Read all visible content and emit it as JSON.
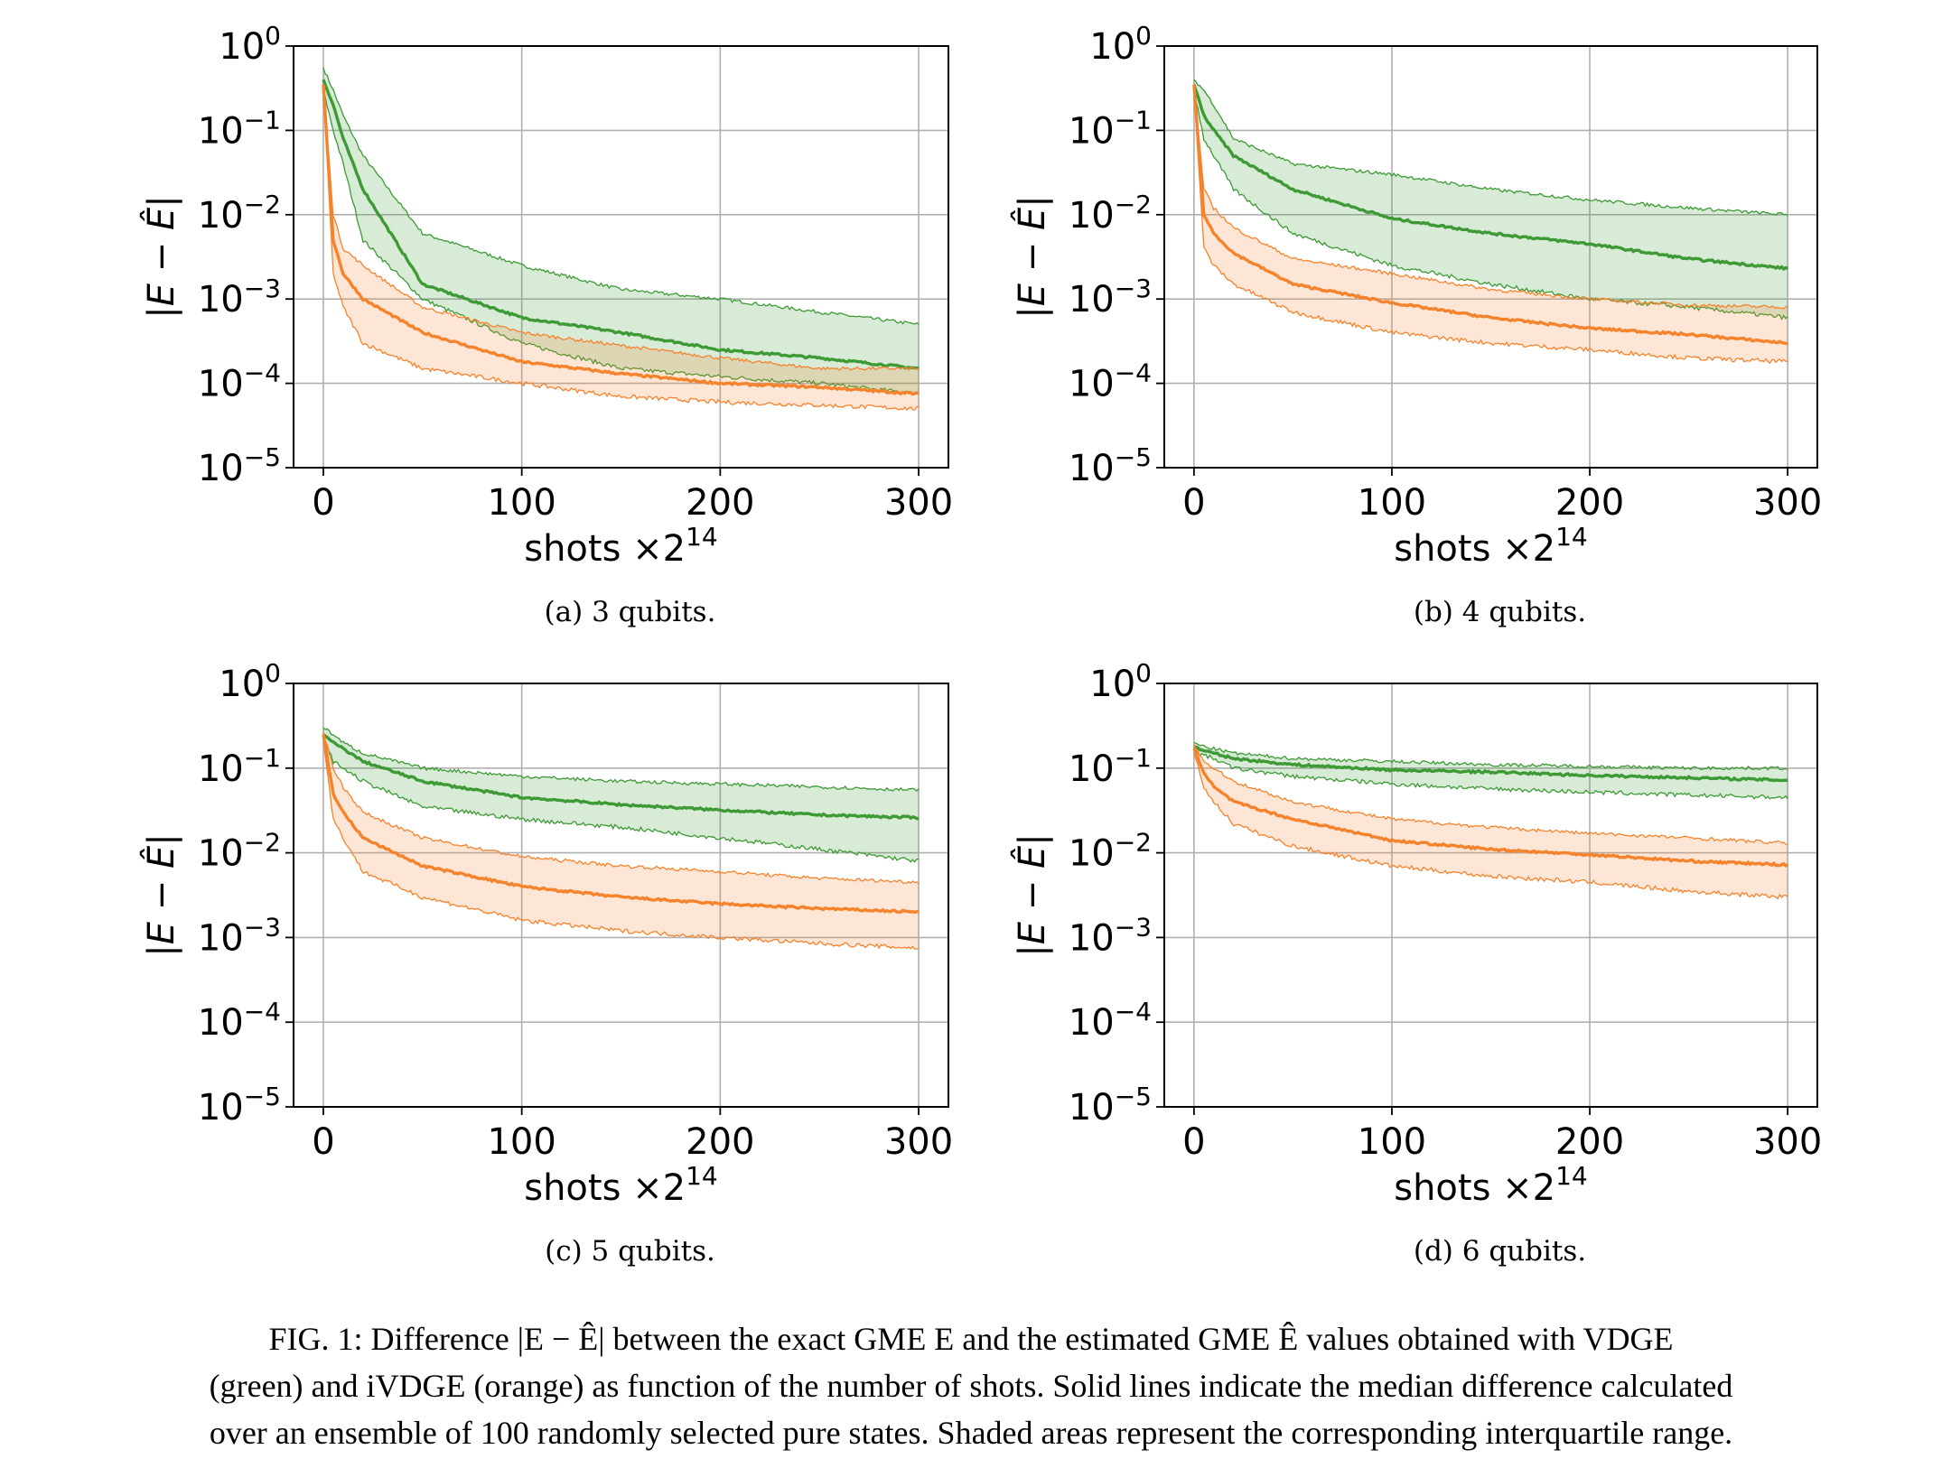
{
  "colors": {
    "green": "#3d9a35",
    "orange": "#f5832c",
    "grid": "#b0b0b0"
  },
  "chart_data": [
    {
      "type": "line",
      "subcaption": "(a) 3 qubits.",
      "xlabel": "shots ×2",
      "xlabel_exp": "14",
      "ylabel": "|E − Ê|",
      "yscale": "log",
      "ylim": [
        1e-05,
        1
      ],
      "xlim": [
        -15,
        315
      ],
      "xticks": [
        0,
        100,
        200,
        300
      ],
      "yticks": [
        {
          "base": "10",
          "exp": "0",
          "v": 1
        },
        {
          "base": "10",
          "exp": "−1",
          "v": 0.1
        },
        {
          "base": "10",
          "exp": "−2",
          "v": 0.01
        },
        {
          "base": "10",
          "exp": "−3",
          "v": 0.001
        },
        {
          "base": "10",
          "exp": "−4",
          "v": 0.0001
        },
        {
          "base": "10",
          "exp": "−5",
          "v": 1e-05
        }
      ],
      "grid": true,
      "x": [
        0,
        5,
        10,
        20,
        50,
        100,
        150,
        200,
        250,
        300
      ],
      "series": [
        {
          "color": "green",
          "median": [
            0.4,
            0.2,
            0.08,
            0.02,
            0.0015,
            0.0006,
            0.0004,
            0.00025,
            0.0002,
            0.00015
          ],
          "q3": [
            0.55,
            0.3,
            0.15,
            0.05,
            0.006,
            0.0025,
            0.0013,
            0.001,
            0.0007,
            0.0005
          ],
          "q1": [
            0.3,
            0.1,
            0.04,
            0.005,
            0.001,
            0.0003,
            0.00015,
            0.00012,
            0.0001,
            7.5e-05
          ]
        },
        {
          "color": "orange",
          "median": [
            0.35,
            0.005,
            0.002,
            0.001,
            0.0004,
            0.00018,
            0.00013,
            0.0001,
            9e-05,
            7.5e-05
          ],
          "q3": [
            0.35,
            0.01,
            0.004,
            0.0025,
            0.0008,
            0.0004,
            0.00028,
            0.0002,
            0.00015,
            0.00015
          ],
          "q1": [
            0.3,
            0.002,
            0.0008,
            0.0003,
            0.00015,
            0.0001,
            7e-05,
            6e-05,
            5.5e-05,
            5e-05
          ]
        }
      ]
    },
    {
      "type": "line",
      "subcaption": "(b) 4 qubits.",
      "xlabel": "shots ×2",
      "xlabel_exp": "14",
      "ylabel": "|E − Ê|",
      "yscale": "log",
      "ylim": [
        1e-05,
        1
      ],
      "xlim": [
        -15,
        315
      ],
      "xticks": [
        0,
        100,
        200,
        300
      ],
      "yticks": [
        {
          "base": "10",
          "exp": "0",
          "v": 1
        },
        {
          "base": "10",
          "exp": "−1",
          "v": 0.1
        },
        {
          "base": "10",
          "exp": "−2",
          "v": 0.01
        },
        {
          "base": "10",
          "exp": "−3",
          "v": 0.001
        },
        {
          "base": "10",
          "exp": "−4",
          "v": 0.0001
        },
        {
          "base": "10",
          "exp": "−5",
          "v": 1e-05
        }
      ],
      "grid": true,
      "x": [
        0,
        5,
        10,
        20,
        50,
        100,
        150,
        200,
        250,
        300
      ],
      "series": [
        {
          "color": "green",
          "median": [
            0.35,
            0.15,
            0.1,
            0.05,
            0.02,
            0.009,
            0.006,
            0.0045,
            0.003,
            0.0023
          ],
          "q3": [
            0.4,
            0.3,
            0.2,
            0.08,
            0.04,
            0.03,
            0.02,
            0.015,
            0.012,
            0.01
          ],
          "q1": [
            0.3,
            0.08,
            0.05,
            0.02,
            0.006,
            0.0025,
            0.0015,
            0.001,
            0.0008,
            0.0006
          ]
        },
        {
          "color": "orange",
          "median": [
            0.35,
            0.01,
            0.006,
            0.0035,
            0.0015,
            0.0009,
            0.0006,
            0.00045,
            0.00038,
            0.0003
          ],
          "q3": [
            0.35,
            0.02,
            0.012,
            0.007,
            0.003,
            0.002,
            0.0013,
            0.001,
            0.00085,
            0.0008
          ],
          "q1": [
            0.3,
            0.004,
            0.0025,
            0.0015,
            0.0007,
            0.0004,
            0.0003,
            0.00025,
            0.0002,
            0.00018
          ]
        }
      ]
    },
    {
      "type": "line",
      "subcaption": "(c) 5 qubits.",
      "xlabel": "shots ×2",
      "xlabel_exp": "14",
      "ylabel": "|E − Ê|",
      "yscale": "log",
      "ylim": [
        1e-05,
        1
      ],
      "xlim": [
        -15,
        315
      ],
      "xticks": [
        0,
        100,
        200,
        300
      ],
      "yticks": [
        {
          "base": "10",
          "exp": "0",
          "v": 1
        },
        {
          "base": "10",
          "exp": "−1",
          "v": 0.1
        },
        {
          "base": "10",
          "exp": "−2",
          "v": 0.01
        },
        {
          "base": "10",
          "exp": "−3",
          "v": 0.001
        },
        {
          "base": "10",
          "exp": "−4",
          "v": 0.0001
        },
        {
          "base": "10",
          "exp": "−5",
          "v": 1e-05
        }
      ],
      "grid": true,
      "x": [
        0,
        5,
        10,
        20,
        50,
        100,
        150,
        200,
        250,
        300
      ],
      "series": [
        {
          "color": "green",
          "median": [
            0.25,
            0.2,
            0.17,
            0.12,
            0.07,
            0.045,
            0.037,
            0.032,
            0.028,
            0.026
          ],
          "q3": [
            0.3,
            0.25,
            0.2,
            0.15,
            0.1,
            0.08,
            0.07,
            0.065,
            0.06,
            0.055
          ],
          "q1": [
            0.22,
            0.12,
            0.1,
            0.07,
            0.035,
            0.025,
            0.02,
            0.015,
            0.011,
            0.008
          ]
        },
        {
          "color": "orange",
          "median": [
            0.25,
            0.05,
            0.03,
            0.015,
            0.007,
            0.004,
            0.003,
            0.0025,
            0.0022,
            0.002
          ],
          "q3": [
            0.27,
            0.1,
            0.06,
            0.03,
            0.015,
            0.009,
            0.007,
            0.006,
            0.005,
            0.0045
          ],
          "q1": [
            0.22,
            0.025,
            0.015,
            0.006,
            0.003,
            0.0016,
            0.0012,
            0.001,
            0.00085,
            0.00075
          ]
        }
      ]
    },
    {
      "type": "line",
      "subcaption": "(d) 6 qubits.",
      "xlabel": "shots ×2",
      "xlabel_exp": "14",
      "ylabel": "|E − Ê|",
      "yscale": "log",
      "ylim": [
        1e-05,
        1
      ],
      "xlim": [
        -15,
        315
      ],
      "xticks": [
        0,
        100,
        200,
        300
      ],
      "yticks": [
        {
          "base": "10",
          "exp": "0",
          "v": 1
        },
        {
          "base": "10",
          "exp": "−1",
          "v": 0.1
        },
        {
          "base": "10",
          "exp": "−2",
          "v": 0.01
        },
        {
          "base": "10",
          "exp": "−3",
          "v": 0.001
        },
        {
          "base": "10",
          "exp": "−4",
          "v": 0.0001
        },
        {
          "base": "10",
          "exp": "−5",
          "v": 1e-05
        }
      ],
      "grid": true,
      "x": [
        0,
        5,
        10,
        20,
        50,
        100,
        150,
        200,
        250,
        300
      ],
      "series": [
        {
          "color": "green",
          "median": [
            0.18,
            0.16,
            0.15,
            0.13,
            0.11,
            0.095,
            0.09,
            0.082,
            0.077,
            0.072
          ],
          "q3": [
            0.2,
            0.18,
            0.17,
            0.15,
            0.13,
            0.12,
            0.11,
            0.105,
            0.1,
            0.1
          ],
          "q1": [
            0.16,
            0.14,
            0.13,
            0.1,
            0.08,
            0.065,
            0.057,
            0.052,
            0.048,
            0.045
          ]
        },
        {
          "color": "orange",
          "median": [
            0.17,
            0.09,
            0.06,
            0.04,
            0.025,
            0.014,
            0.011,
            0.0095,
            0.008,
            0.0072
          ],
          "q3": [
            0.19,
            0.12,
            0.1,
            0.07,
            0.04,
            0.025,
            0.02,
            0.017,
            0.015,
            0.013
          ],
          "q1": [
            0.15,
            0.06,
            0.04,
            0.022,
            0.012,
            0.007,
            0.0053,
            0.0045,
            0.0035,
            0.003
          ]
        }
      ]
    }
  ],
  "figure_caption": [
    "FIG. 1: Difference |E − Ê| between the exact GME E and the estimated GME Ê values obtained with VDGE",
    "(green) and iVDGE (orange) as function of the number of shots. Solid lines indicate the median difference calculated",
    "over an ensemble of 100 randomly selected pure states. Shaded areas represent the corresponding interquartile range."
  ]
}
